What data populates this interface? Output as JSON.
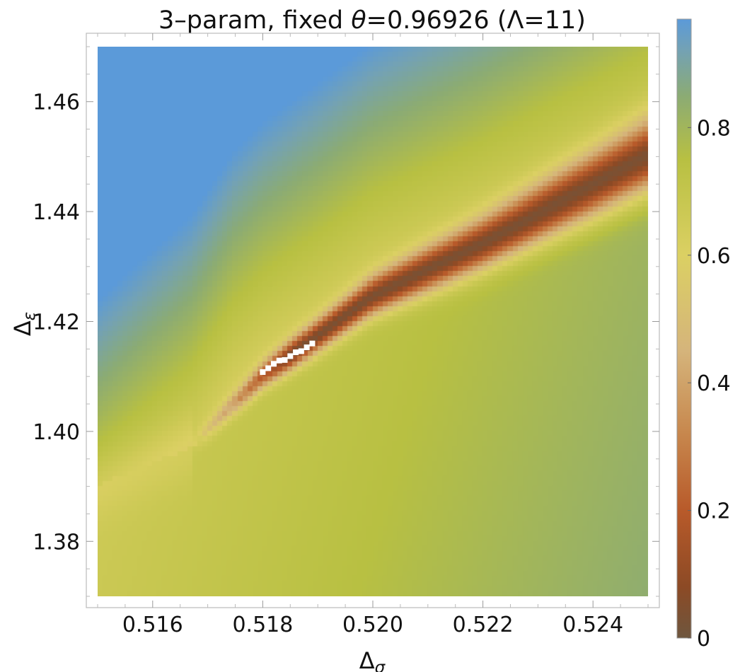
{
  "chart_data": {
    "type": "heatmap",
    "title": "3–param, fixed θ=0.96926 (Λ=11)",
    "title_parts": {
      "prefix": "3–param, fixed ",
      "symbol": "θ",
      "suffix": "=0.96926 (Λ=11)"
    },
    "xlabel": "Δσ",
    "xlabel_parts": {
      "base": "Δ",
      "sub": "σ"
    },
    "ylabel": "Δε",
    "ylabel_parts": {
      "base": "Δ",
      "sub": "ε"
    },
    "xlim": [
      0.515,
      0.525
    ],
    "ylim": [
      1.37,
      1.47
    ],
    "x_ticks": [
      0.516,
      0.518,
      0.52,
      0.522,
      0.524
    ],
    "x_tick_labels": [
      "0.516",
      "0.518",
      "0.520",
      "0.522",
      "0.524"
    ],
    "y_ticks": [
      1.38,
      1.4,
      1.42,
      1.44,
      1.46
    ],
    "y_tick_labels": [
      "1.38",
      "1.40",
      "1.42",
      "1.44",
      "1.46"
    ],
    "colorbar": {
      "range": [
        0,
        0.97
      ],
      "ticks": [
        0,
        0.2,
        0.4,
        0.6,
        0.8
      ],
      "tick_labels": [
        "0",
        "0.2",
        "0.4",
        "0.6",
        "0.8"
      ],
      "stops": [
        {
          "v": 0.0,
          "color": "#6e563e"
        },
        {
          "v": 0.08,
          "color": "#8c4a25"
        },
        {
          "v": 0.2,
          "color": "#b85a2a"
        },
        {
          "v": 0.32,
          "color": "#c7874d"
        },
        {
          "v": 0.45,
          "color": "#d5b47b"
        },
        {
          "v": 0.6,
          "color": "#dbd063"
        },
        {
          "v": 0.75,
          "color": "#b8c042"
        },
        {
          "v": 0.85,
          "color": "#8bab74"
        },
        {
          "v": 0.92,
          "color": "#74a2b3"
        },
        {
          "v": 0.97,
          "color": "#5b9ad9"
        }
      ]
    },
    "grid_resolution": [
      110,
      110
    ],
    "valley": {
      "description": "curved low-value ridge from (0.5167,1.397) to (0.525,1.450)",
      "path": [
        [
          0.5167,
          1.397
        ],
        [
          0.518,
          1.41
        ],
        [
          0.52,
          1.4245
        ],
        [
          0.522,
          1.434
        ],
        [
          0.525,
          1.45
        ]
      ]
    },
    "highlight_points": [
      [
        0.518,
        1.4108
      ],
      [
        0.5181,
        1.4115
      ],
      [
        0.5182,
        1.4123
      ],
      [
        0.5183,
        1.4129
      ],
      [
        0.5184,
        1.413
      ],
      [
        0.5185,
        1.4137
      ],
      [
        0.5186,
        1.4144
      ],
      [
        0.5187,
        1.4146
      ],
      [
        0.5188,
        1.4153
      ],
      [
        0.5189,
        1.416
      ]
    ]
  }
}
